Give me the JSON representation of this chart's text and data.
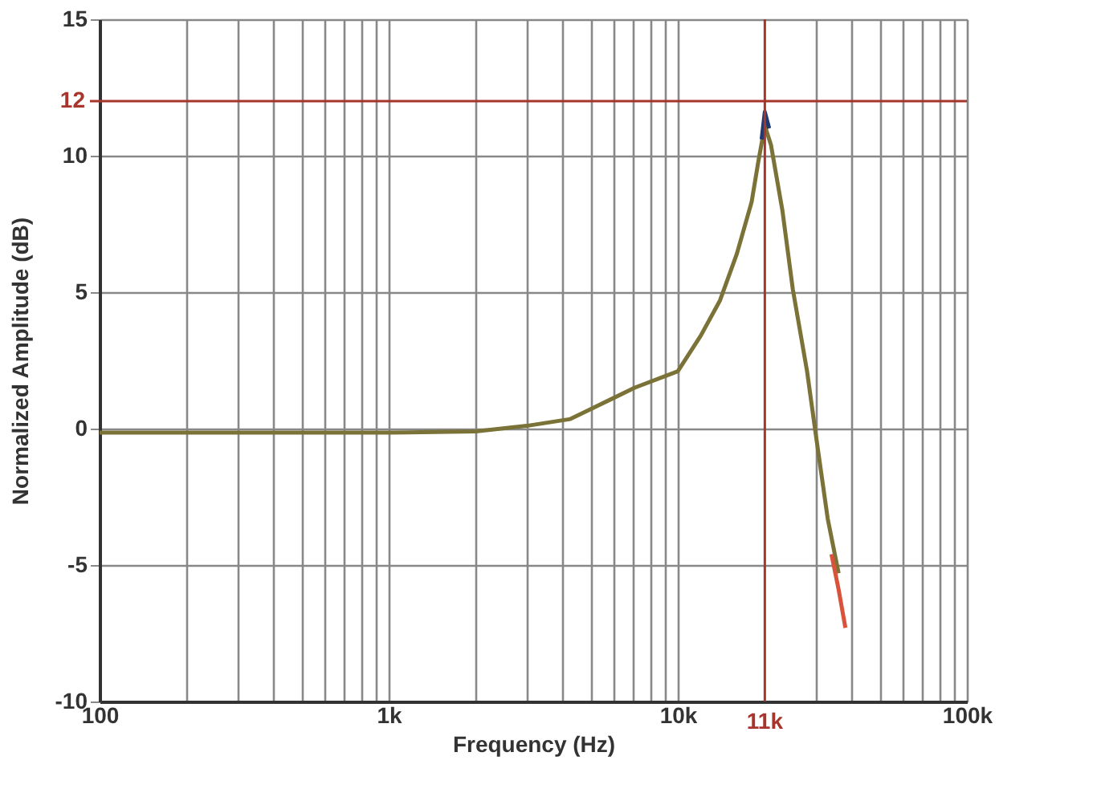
{
  "chart_data": {
    "type": "line",
    "xlabel": "Frequency (Hz)",
    "ylabel": "Normalized Amplitude (dB)",
    "log": "x",
    "grid": true,
    "legend": false,
    "line_style": "solid",
    "marker": "none",
    "xlim": [
      100,
      100000
    ],
    "ylim": [
      -10,
      15
    ],
    "xticks": [
      {
        "value": 100,
        "label": "100"
      },
      {
        "value": 200,
        "label": null
      },
      {
        "value": 300,
        "label": null
      },
      {
        "value": 400,
        "label": null
      },
      {
        "value": 500,
        "label": null
      },
      {
        "value": 600,
        "label": null
      },
      {
        "value": 700,
        "label": null
      },
      {
        "value": 800,
        "label": null
      },
      {
        "value": 900,
        "label": null
      },
      {
        "value": 1000,
        "label": "1k"
      },
      {
        "value": 2000,
        "label": null
      },
      {
        "value": 3000,
        "label": null
      },
      {
        "value": 4000,
        "label": null
      },
      {
        "value": 5000,
        "label": null
      },
      {
        "value": 6000,
        "label": null
      },
      {
        "value": 7000,
        "label": null
      },
      {
        "value": 8000,
        "label": null
      },
      {
        "value": 9000,
        "label": null
      },
      {
        "value": 10000,
        "label": "10k"
      },
      {
        "value": 30000,
        "label": null
      },
      {
        "value": 40000,
        "label": null
      },
      {
        "value": 50000,
        "label": null
      },
      {
        "value": 60000,
        "label": null
      },
      {
        "value": 70000,
        "label": null
      },
      {
        "value": 80000,
        "label": null
      },
      {
        "value": 90000,
        "label": null
      },
      {
        "value": 100000,
        "label": "100k"
      }
    ],
    "yticks": [
      -10,
      -5,
      0,
      5,
      10,
      15
    ],
    "ref_lines": [
      {
        "axis": "x",
        "value": 20000,
        "label": "11k",
        "color": "#a8352c"
      },
      {
        "axis": "y",
        "value": 12,
        "label": "12",
        "color": "#a8352c"
      }
    ],
    "series": [
      {
        "color": "#7a7236",
        "x": [
          100,
          300,
          1000,
          2000,
          3000,
          4250,
          7100,
          10000,
          12000,
          14000,
          16000,
          18000,
          19000,
          20000,
          21000,
          23000,
          25000,
          28000,
          30000,
          33000,
          36000
        ],
        "values": [
          -0.15,
          -0.15,
          -0.15,
          -0.1,
          0.1,
          0.35,
          1.5,
          2.1,
          3.4,
          4.7,
          6.4,
          8.3,
          9.8,
          11.1,
          10.4,
          8.0,
          5.1,
          2.1,
          -0.2,
          -3.3,
          -5.3
        ]
      },
      {
        "color": "#1f3a6e",
        "x": [
          19500,
          20000,
          20700
        ],
        "values": [
          10.6,
          11.6,
          11.0
        ]
      },
      {
        "color": "#d9533a",
        "x": [
          34000,
          36000,
          38000
        ],
        "values": [
          -4.6,
          -5.9,
          -7.3
        ]
      }
    ]
  }
}
